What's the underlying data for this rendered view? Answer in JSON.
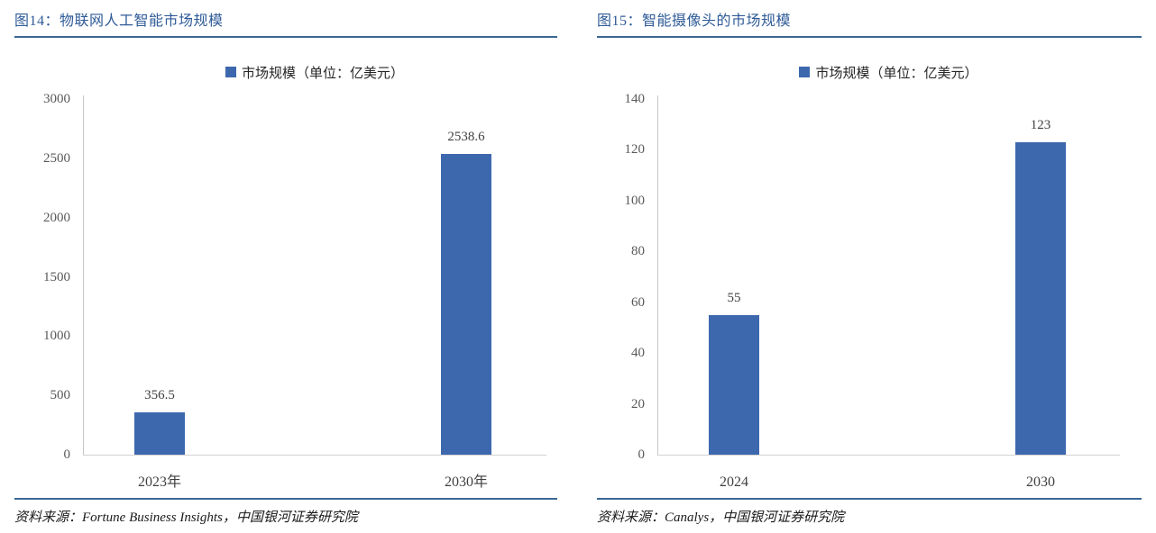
{
  "colors": {
    "title_blue": "#2F5B97",
    "rule_blue": "#3A6795",
    "bar_blue": "#3D68AE",
    "tick_gray": "#595959",
    "label_gray": "#404040"
  },
  "figures": [
    {
      "title": "图14：物联网人工智能市场规模",
      "legend": "市场规模（单位：亿美元）",
      "source": "资料来源：Fortune Business Insights，中国银河证券研究院"
    },
    {
      "title": "图15：智能摄像头的市场规模",
      "legend": "市场规模（单位：亿美元）",
      "source": "资料来源：Canalys，中国银河证券研究院"
    }
  ],
  "chart_data": [
    {
      "type": "bar",
      "title": "图14：物联网人工智能市场规模",
      "categories": [
        "2023年",
        "2030年"
      ],
      "values": [
        356.5,
        2538.6
      ],
      "value_labels": [
        "356.5",
        "2538.6"
      ],
      "series_name": "市场规模（单位：亿美元）",
      "unit": "亿美元",
      "ylim": [
        0,
        3000
      ],
      "ytick_step": 500,
      "yticks": [
        0,
        500,
        1000,
        1500,
        2000,
        2500,
        3000
      ],
      "grid": false,
      "legend_position": "top",
      "bar_color": "#3D68AE",
      "source": "资料来源：Fortune Business Insights，中国银河证券研究院"
    },
    {
      "type": "bar",
      "title": "图15：智能摄像头的市场规模",
      "categories": [
        "2024",
        "2030"
      ],
      "values": [
        55,
        123
      ],
      "value_labels": [
        "55",
        "123"
      ],
      "series_name": "市场规模（单位：亿美元）",
      "unit": "亿美元",
      "ylim": [
        0,
        140
      ],
      "ytick_step": 20,
      "yticks": [
        0,
        20,
        40,
        60,
        80,
        100,
        120,
        140
      ],
      "grid": false,
      "legend_position": "top",
      "bar_color": "#3D68AE",
      "source": "资料来源：Canalys，中国银河证券研究院"
    }
  ]
}
